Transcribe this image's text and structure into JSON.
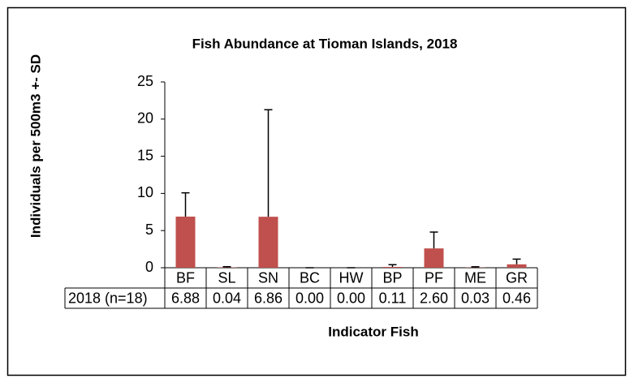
{
  "chart_data": {
    "type": "bar",
    "title": "Fish Abundance at Tioman Islands, 2018",
    "y_label": "Individuals per  500m3  +- SD",
    "x_label": "Indicator Fish",
    "categories": [
      "BF",
      "SL",
      "SN",
      "BC",
      "HW",
      "BP",
      "PF",
      "ME",
      "GR"
    ],
    "series_name": "2018 (n=18)",
    "values": [
      6.88,
      0.04,
      6.86,
      0.0,
      0.0,
      0.11,
      2.6,
      0.03,
      0.46
    ],
    "value_labels": [
      "6.88",
      "0.04",
      "6.86",
      "0.00",
      "0.00",
      "0.11",
      "2.60",
      "0.03",
      "0.46"
    ],
    "errors": [
      3.2,
      0.1,
      14.4,
      0,
      0,
      0.3,
      2.2,
      0.1,
      0.7
    ],
    "color": "#c0504d",
    "ylim": [
      0,
      25
    ],
    "yticks": [
      0,
      5,
      10,
      15,
      20,
      25
    ],
    "grid": false
  }
}
